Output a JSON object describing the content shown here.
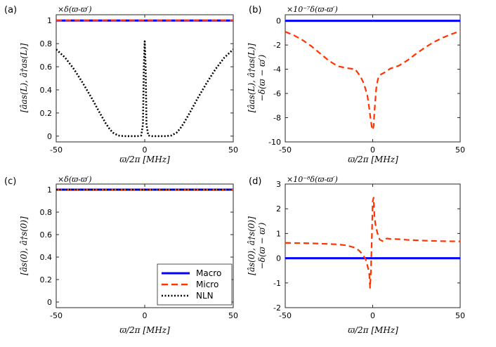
{
  "colors": {
    "macro": "#0000ff",
    "micro": "#ff3300",
    "nln": "#000000"
  },
  "legend": {
    "entries": [
      "Macro",
      "Micro",
      "NLN"
    ]
  },
  "chart_data": [
    {
      "type": "line",
      "panel_label": "(a)",
      "scale_label": "×δ(ϖ-ϖ′)",
      "xlabel": "ϖ/2π [MHz]",
      "ylabel": [
        "[âas(L), â†as(L)]"
      ],
      "xlim": [
        -50,
        50
      ],
      "ylim": [
        -0.05,
        1.05
      ],
      "xticks": [
        -50,
        0,
        50
      ],
      "xtick_labels": [
        "-50",
        "0",
        "50"
      ],
      "yticks": [
        0,
        0.2,
        0.4,
        0.6,
        0.8,
        1
      ],
      "ytick_labels": [
        "0",
        "0.2",
        "0.4",
        "0.6",
        "0.8",
        "1"
      ],
      "series": [
        {
          "name": "Macro",
          "style": "solid",
          "x": [
            -50,
            50
          ],
          "y": [
            1,
            1
          ]
        },
        {
          "name": "Micro",
          "style": "dashed",
          "x": [
            -50,
            50
          ],
          "y": [
            1,
            1
          ]
        },
        {
          "name": "NLN",
          "style": "dotted",
          "x": [
            -50,
            -45,
            -40,
            -35,
            -30,
            -25,
            -22,
            -20,
            -18,
            -15,
            -12,
            -10,
            -8,
            -6,
            -4,
            -3,
            -2,
            -1,
            -0.5,
            0,
            0.5,
            1,
            2,
            3,
            4,
            6,
            8,
            10,
            12,
            15,
            18,
            20,
            22,
            25,
            30,
            35,
            40,
            45,
            50
          ],
          "y": [
            0.75,
            0.68,
            0.58,
            0.46,
            0.33,
            0.19,
            0.11,
            0.065,
            0.03,
            0.005,
            0,
            0,
            0,
            0,
            0,
            0.003,
            0.005,
            0.1,
            0.6,
            0.82,
            0.6,
            0.1,
            0.005,
            0.003,
            0,
            0,
            0,
            0,
            0,
            0.005,
            0.03,
            0.065,
            0.11,
            0.19,
            0.33,
            0.46,
            0.58,
            0.68,
            0.75
          ]
        }
      ]
    },
    {
      "type": "line",
      "panel_label": "(b)",
      "scale_label": "×10⁻⁷δ(ϖ-ϖ′)",
      "xlabel": "ϖ/2π [MHz]",
      "ylabel": [
        "[âas(L), â†as(L)]",
        "−δ(ϖ − ϖ′)"
      ],
      "xlim": [
        -50,
        50
      ],
      "ylim": [
        -10,
        0.5
      ],
      "xticks": [
        -50,
        0,
        50
      ],
      "xtick_labels": [
        "-50",
        "0",
        "50"
      ],
      "yticks": [
        -10,
        -8,
        -6,
        -4,
        -2,
        0
      ],
      "ytick_labels": [
        "-10",
        "-8",
        "-6",
        "-4",
        "-2",
        "0"
      ],
      "series": [
        {
          "name": "Macro",
          "style": "solid",
          "x": [
            -50,
            50
          ],
          "y": [
            0,
            0
          ]
        },
        {
          "name": "Micro",
          "style": "dashed",
          "x": [
            -50,
            -45,
            -40,
            -35,
            -30,
            -25,
            -20,
            -15,
            -10,
            -7,
            -5,
            -3,
            -2,
            -1,
            -0.5,
            0,
            0.5,
            1,
            2,
            3,
            4,
            5,
            7,
            10,
            15,
            20,
            25,
            30,
            35,
            40,
            45,
            50
          ],
          "y": [
            -0.9,
            -1.2,
            -1.6,
            -2.1,
            -2.7,
            -3.3,
            -3.75,
            -3.9,
            -4.0,
            -4.6,
            -5.2,
            -6.2,
            -7.2,
            -8.3,
            -8.8,
            -9.0,
            -8.7,
            -7.5,
            -5.6,
            -4.8,
            -4.5,
            -4.4,
            -4.25,
            -3.95,
            -3.7,
            -3.25,
            -2.7,
            -2.2,
            -1.75,
            -1.4,
            -1.1,
            -0.85
          ]
        }
      ]
    },
    {
      "type": "line",
      "panel_label": "(c)",
      "scale_label": "×δ(ϖ-ϖ′)",
      "xlabel": "ϖ/2π [MHz]",
      "ylabel": [
        "[âs(0), â†s(0)]"
      ],
      "xlim": [
        -50,
        50
      ],
      "ylim": [
        -0.05,
        1.05
      ],
      "xticks": [
        -50,
        0,
        50
      ],
      "xtick_labels": [
        "-50",
        "0",
        "50"
      ],
      "yticks": [
        0,
        0.2,
        0.4,
        0.6,
        0.8,
        1
      ],
      "ytick_labels": [
        "0",
        "0.2",
        "0.4",
        "0.6",
        "0.8",
        "1"
      ],
      "series": [
        {
          "name": "Macro",
          "style": "solid",
          "x": [
            -50,
            50
          ],
          "y": [
            1,
            1
          ]
        },
        {
          "name": "Micro",
          "style": "dashed",
          "x": [
            -50,
            50
          ],
          "y": [
            1,
            1
          ]
        },
        {
          "name": "NLN",
          "style": "dotted",
          "x": [
            -50,
            50
          ],
          "y": [
            1,
            1
          ]
        }
      ]
    },
    {
      "type": "line",
      "panel_label": "(d)",
      "scale_label": "×10⁻⁸δ(ϖ-ϖ′)",
      "xlabel": "ϖ/2π [MHz]",
      "ylabel": [
        "[âs(0), â†s(0)]",
        "−δ(ϖ − ϖ′)"
      ],
      "xlim": [
        -50,
        50
      ],
      "ylim": [
        -2,
        3
      ],
      "xticks": [
        -50,
        0,
        50
      ],
      "xtick_labels": [
        "-50",
        "0",
        "50"
      ],
      "yticks": [
        -2,
        -1,
        0,
        1,
        2,
        3
      ],
      "ytick_labels": [
        "-2",
        "-1",
        "0",
        "1",
        "2",
        "3"
      ],
      "series": [
        {
          "name": "Macro",
          "style": "solid",
          "x": [
            -50,
            50
          ],
          "y": [
            0,
            0
          ]
        },
        {
          "name": "Micro",
          "style": "dashed",
          "x": [
            -50,
            -40,
            -30,
            -20,
            -15,
            -10,
            -8,
            -6,
            -4,
            -3,
            -2,
            -1.5,
            -1,
            -0.5,
            0,
            0.5,
            1,
            1.5,
            2,
            3,
            4,
            6,
            8,
            10,
            15,
            20,
            30,
            40,
            50
          ],
          "y": [
            0.62,
            0.61,
            0.59,
            0.56,
            0.52,
            0.42,
            0.32,
            0.18,
            -0.05,
            -0.3,
            -0.6,
            -1.2,
            -0.5,
            0.8,
            2.3,
            2.45,
            1.7,
            1.4,
            1.2,
            0.95,
            0.75,
            0.68,
            0.8,
            0.78,
            0.77,
            0.74,
            0.71,
            0.69,
            0.68
          ]
        }
      ]
    }
  ]
}
